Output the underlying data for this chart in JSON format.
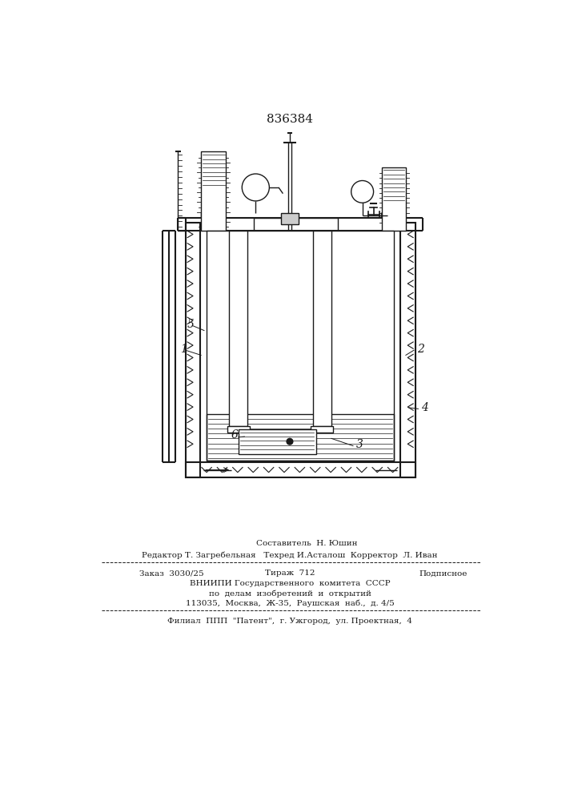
{
  "patent_number": "836384",
  "bg_color": "#ffffff",
  "line_color": "#1a1a1a",
  "title_fontsize": 11,
  "body_fontsize": 7.5,
  "footer_lines": [
    "Составитель  Н. Юшин",
    "Редактор Т. Загребельная   Техред И.Асталош  Корректор  Л. Иван",
    "Заказ  3030/25                  Тираж  712           Подписное",
    "ВНИИПИ Государственного  комитета  СССР",
    "по  делам  изобретений  и  открытий",
    "113035,  Москва,  Ж-35,  Раушская  наб.,  д. 4/5",
    "Филиал  ППП  \"Патент\",  г. Ужгород,  ул. Проектная,  4"
  ]
}
